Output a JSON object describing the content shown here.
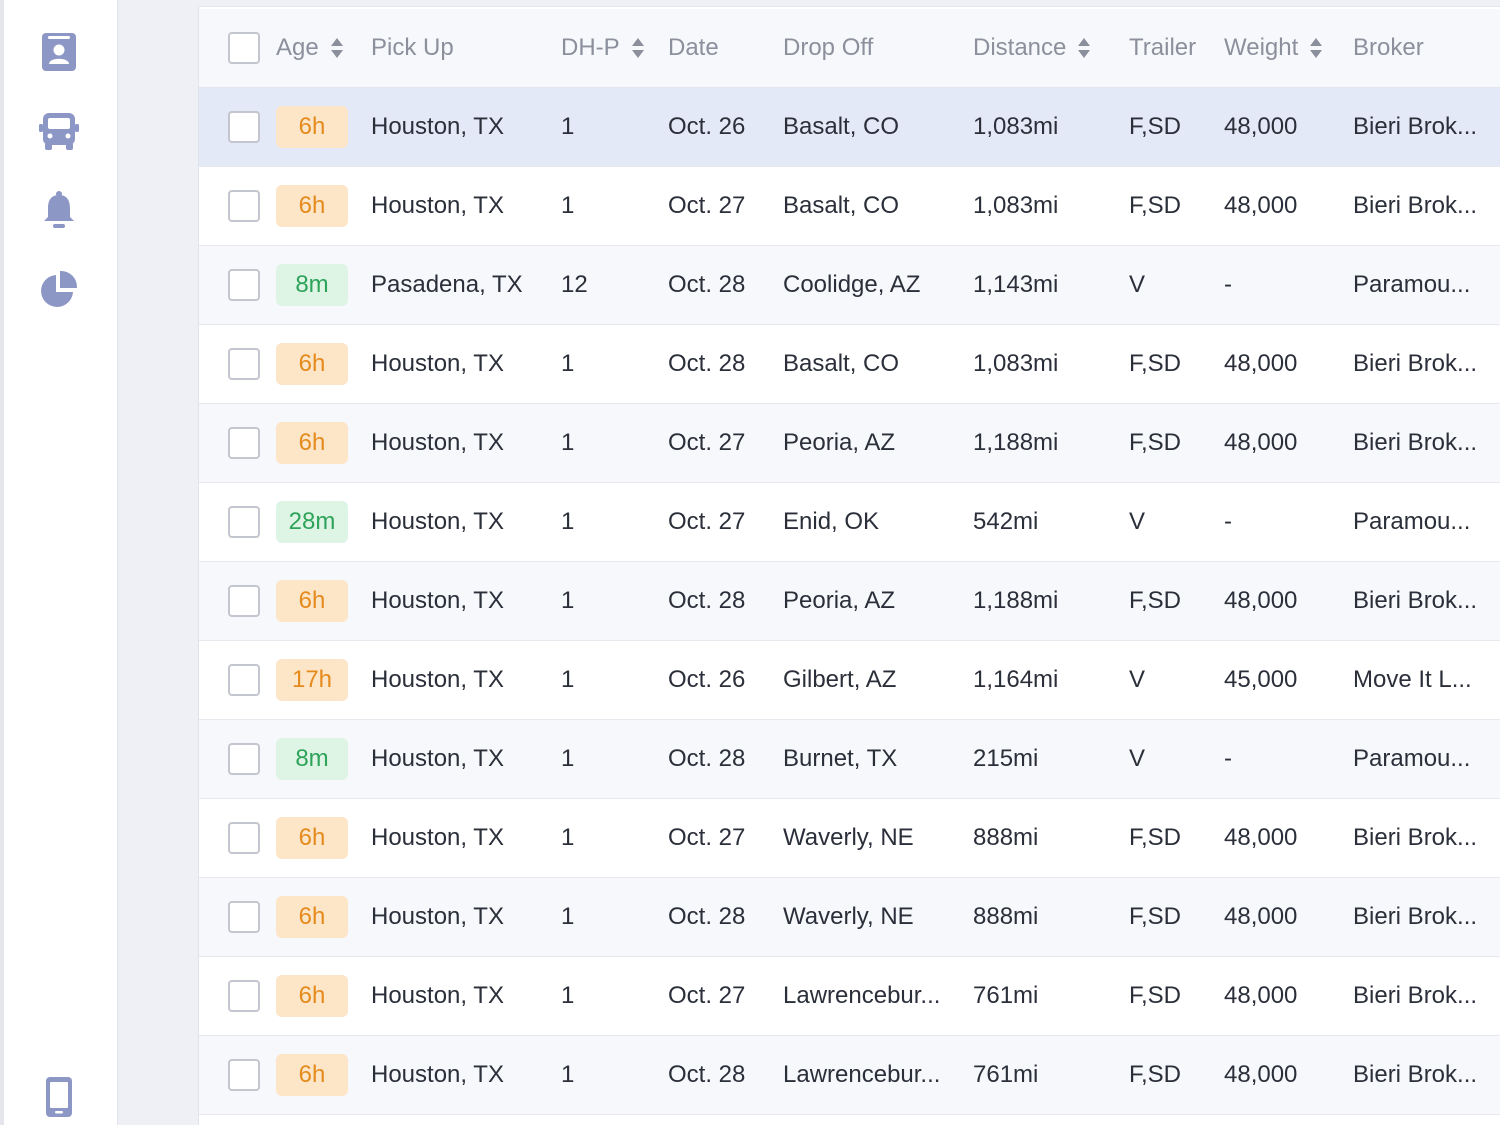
{
  "colors": {
    "rail_icon": "#8d97c6",
    "badge_orange_bg": "#fde5c8",
    "badge_orange_text": "#e58b1d",
    "badge_green_bg": "#def4e4",
    "badge_green_text": "#2ea35a",
    "selected_row": "#e4e9f7"
  },
  "rail": {
    "icons": [
      "contact-card-icon",
      "truck-icon",
      "bell-icon",
      "pie-chart-icon",
      "mobile-device-icon"
    ]
  },
  "table": {
    "columns": {
      "age": "Age",
      "pickup": "Pick Up",
      "dhp": "DH-P",
      "date": "Date",
      "dropoff": "Drop Off",
      "distance": "Distance",
      "trailer": "Trailer",
      "weight": "Weight",
      "broker": "Broker"
    },
    "rows": [
      {
        "age": "6h",
        "age_color": "orange",
        "pickup": "Houston, TX",
        "dhp": "1",
        "date": "Oct. 26",
        "dropoff": "Basalt, CO",
        "distance": "1,083mi",
        "trailer": "F,SD",
        "weight": "48,000",
        "broker": "Bieri Brok...",
        "selected": true
      },
      {
        "age": "6h",
        "age_color": "orange",
        "pickup": "Houston, TX",
        "dhp": "1",
        "date": "Oct. 27",
        "dropoff": "Basalt, CO",
        "distance": "1,083mi",
        "trailer": "F,SD",
        "weight": "48,000",
        "broker": "Bieri Brok..."
      },
      {
        "age": "8m",
        "age_color": "green",
        "pickup": "Pasadena, TX",
        "dhp": "12",
        "date": "Oct. 28",
        "dropoff": "Coolidge, AZ",
        "distance": "1,143mi",
        "trailer": "V",
        "weight": "-",
        "broker": "Paramou..."
      },
      {
        "age": "6h",
        "age_color": "orange",
        "pickup": "Houston, TX",
        "dhp": "1",
        "date": "Oct. 28",
        "dropoff": "Basalt, CO",
        "distance": "1,083mi",
        "trailer": "F,SD",
        "weight": "48,000",
        "broker": "Bieri Brok..."
      },
      {
        "age": "6h",
        "age_color": "orange",
        "pickup": "Houston, TX",
        "dhp": "1",
        "date": "Oct. 27",
        "dropoff": "Peoria, AZ",
        "distance": "1,188mi",
        "trailer": "F,SD",
        "weight": "48,000",
        "broker": "Bieri Brok..."
      },
      {
        "age": "28m",
        "age_color": "green",
        "pickup": "Houston, TX",
        "dhp": "1",
        "date": "Oct. 27",
        "dropoff": "Enid, OK",
        "distance": "542mi",
        "trailer": "V",
        "weight": "-",
        "broker": "Paramou..."
      },
      {
        "age": "6h",
        "age_color": "orange",
        "pickup": "Houston, TX",
        "dhp": "1",
        "date": "Oct. 28",
        "dropoff": "Peoria, AZ",
        "distance": "1,188mi",
        "trailer": "F,SD",
        "weight": "48,000",
        "broker": "Bieri Brok..."
      },
      {
        "age": "17h",
        "age_color": "orange",
        "pickup": "Houston, TX",
        "dhp": "1",
        "date": "Oct. 26",
        "dropoff": "Gilbert, AZ",
        "distance": "1,164mi",
        "trailer": "V",
        "weight": "45,000",
        "broker": "Move It L..."
      },
      {
        "age": "8m",
        "age_color": "green",
        "pickup": "Houston, TX",
        "dhp": "1",
        "date": "Oct. 28",
        "dropoff": "Burnet, TX",
        "distance": "215mi",
        "trailer": "V",
        "weight": "-",
        "broker": "Paramou..."
      },
      {
        "age": "6h",
        "age_color": "orange",
        "pickup": "Houston, TX",
        "dhp": "1",
        "date": "Oct. 27",
        "dropoff": "Waverly, NE",
        "distance": "888mi",
        "trailer": "F,SD",
        "weight": "48,000",
        "broker": "Bieri Brok..."
      },
      {
        "age": "6h",
        "age_color": "orange",
        "pickup": "Houston, TX",
        "dhp": "1",
        "date": "Oct. 28",
        "dropoff": "Waverly, NE",
        "distance": "888mi",
        "trailer": "F,SD",
        "weight": "48,000",
        "broker": "Bieri Brok..."
      },
      {
        "age": "6h",
        "age_color": "orange",
        "pickup": "Houston, TX",
        "dhp": "1",
        "date": "Oct. 27",
        "dropoff": "Lawrencebur...",
        "distance": "761mi",
        "trailer": "F,SD",
        "weight": "48,000",
        "broker": "Bieri Brok..."
      },
      {
        "age": "6h",
        "age_color": "orange",
        "pickup": "Houston, TX",
        "dhp": "1",
        "date": "Oct. 28",
        "dropoff": "Lawrencebur...",
        "distance": "761mi",
        "trailer": "F,SD",
        "weight": "48,000",
        "broker": "Bieri Brok..."
      }
    ]
  }
}
